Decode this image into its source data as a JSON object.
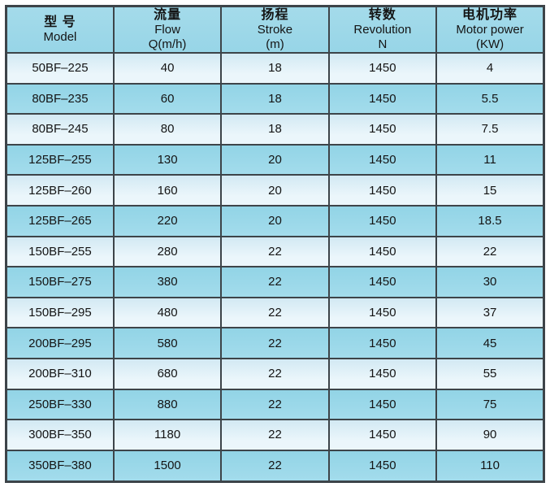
{
  "table": {
    "columns": [
      {
        "zh": "型 号",
        "en": "Model",
        "unit": ""
      },
      {
        "zh": "流量",
        "en": "Flow",
        "unit": "Q(m/h)"
      },
      {
        "zh": "扬程",
        "en": "Stroke",
        "unit": "(m)"
      },
      {
        "zh": "转数",
        "en": "Revolution",
        "unit": "N"
      },
      {
        "zh": "电机功率",
        "en": "Motor power",
        "unit": "(KW)"
      }
    ],
    "rows": [
      [
        "50BF–225",
        "40",
        "18",
        "1450",
        "4"
      ],
      [
        "80BF–235",
        "60",
        "18",
        "1450",
        "5.5"
      ],
      [
        "80BF–245",
        "80",
        "18",
        "1450",
        "7.5"
      ],
      [
        "125BF–255",
        "130",
        "20",
        "1450",
        "11"
      ],
      [
        "125BF–260",
        "160",
        "20",
        "1450",
        "15"
      ],
      [
        "125BF–265",
        "220",
        "20",
        "1450",
        "18.5"
      ],
      [
        "150BF–255",
        "280",
        "22",
        "1450",
        "22"
      ],
      [
        "150BF–275",
        "380",
        "22",
        "1450",
        "30"
      ],
      [
        "150BF–295",
        "480",
        "22",
        "1450",
        "37"
      ],
      [
        "200BF–295",
        "580",
        "22",
        "1450",
        "45"
      ],
      [
        "200BF–310",
        "680",
        "22",
        "1450",
        "55"
      ],
      [
        "250BF–330",
        "880",
        "22",
        "1450",
        "75"
      ],
      [
        "300BF–350",
        "1180",
        "22",
        "1450",
        "90"
      ],
      [
        "350BF–380",
        "1500",
        "22",
        "1450",
        "110"
      ]
    ]
  },
  "chart_data": {
    "type": "table",
    "title": "",
    "columns": [
      "型 号 Model",
      "流量 Flow Q(m/h)",
      "扬程 Stroke (m)",
      "转数 Revolution N",
      "电机功率 Motor power (KW)"
    ],
    "rows": [
      [
        "50BF–225",
        40,
        18,
        1450,
        4
      ],
      [
        "80BF–235",
        60,
        18,
        1450,
        5.5
      ],
      [
        "80BF–245",
        80,
        18,
        1450,
        7.5
      ],
      [
        "125BF–255",
        130,
        20,
        1450,
        11
      ],
      [
        "125BF–260",
        160,
        20,
        1450,
        15
      ],
      [
        "125BF–265",
        220,
        20,
        1450,
        18.5
      ],
      [
        "150BF–255",
        280,
        22,
        1450,
        22
      ],
      [
        "150BF–275",
        380,
        22,
        1450,
        30
      ],
      [
        "150BF–295",
        480,
        22,
        1450,
        37
      ],
      [
        "200BF–295",
        580,
        22,
        1450,
        45
      ],
      [
        "200BF–310",
        680,
        22,
        1450,
        55
      ],
      [
        "250BF–330",
        880,
        22,
        1450,
        75
      ],
      [
        "300BF–350",
        1180,
        22,
        1450,
        90
      ],
      [
        "350BF–380",
        1500,
        22,
        1450,
        110
      ]
    ]
  },
  "colors": {
    "border": "#3d4449",
    "header_bg": "#9bd7e8",
    "row_light": "#ddeef6",
    "row_dark": "#9bd7e8",
    "text": "#141414",
    "page_bg": "#ffffff"
  }
}
